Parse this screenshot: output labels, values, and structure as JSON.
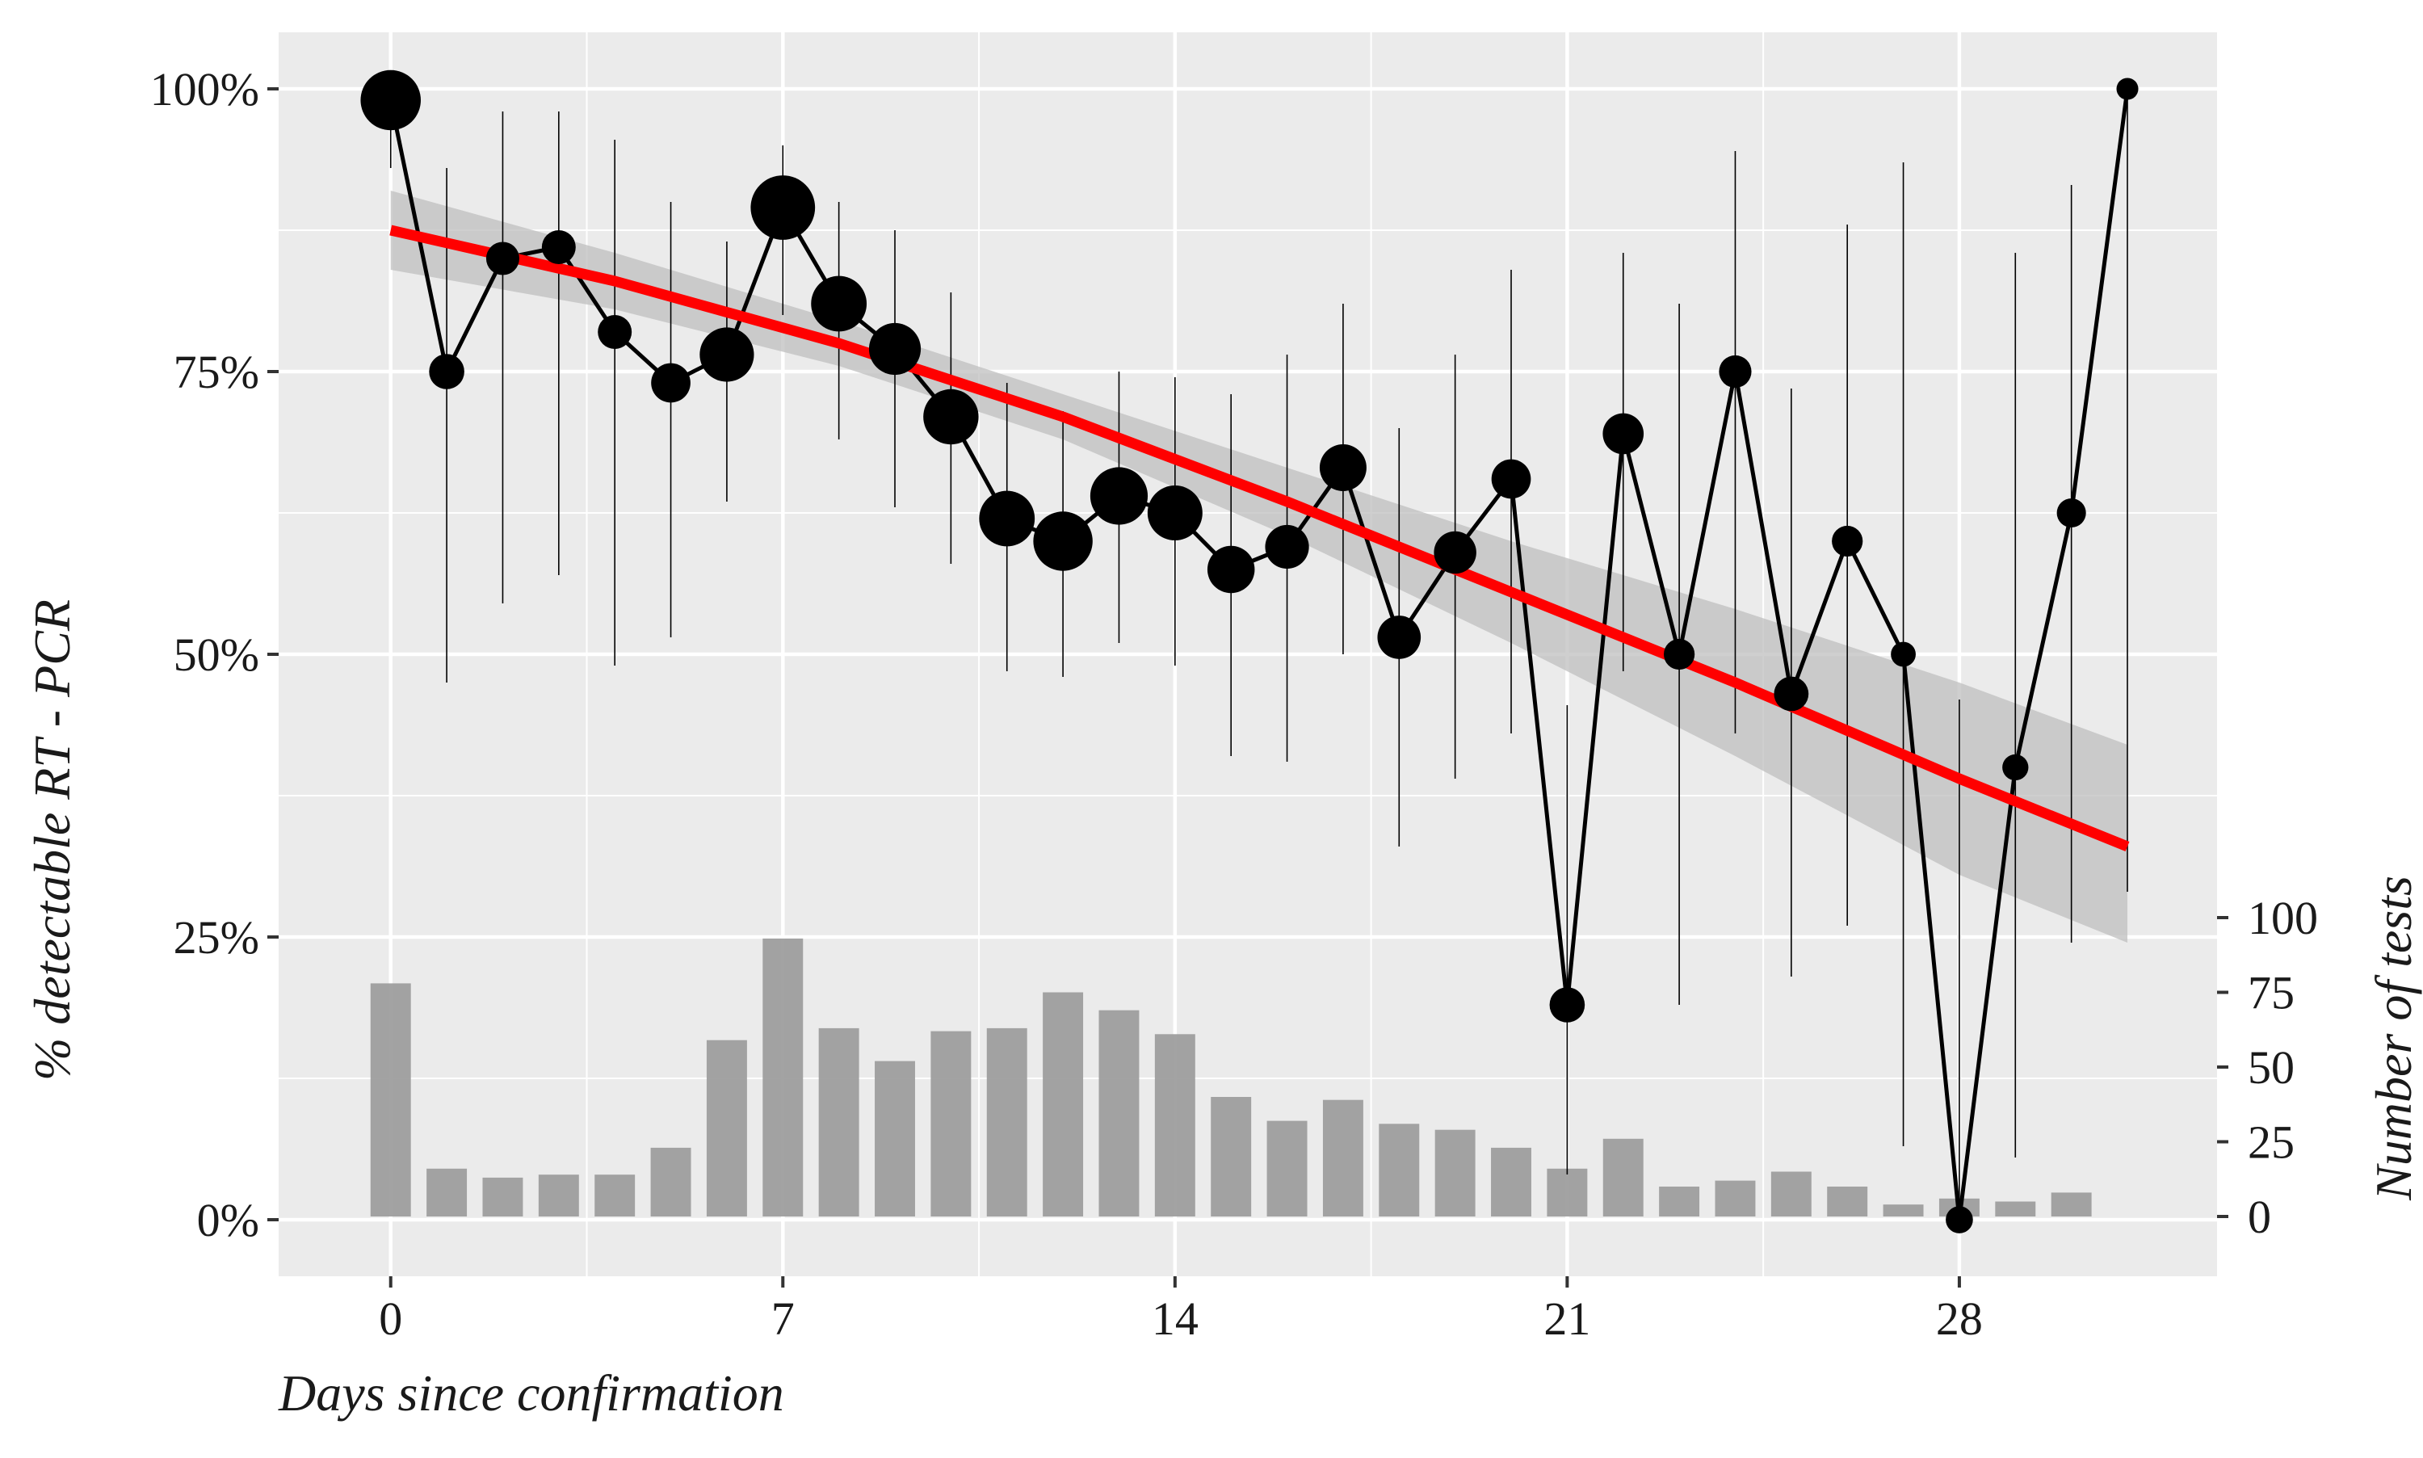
{
  "chart_data": {
    "type": "line",
    "title": "",
    "xlabel": "Days since confirmation",
    "ylabel": "% detectable RT - PCR",
    "y2label": "Number of tests",
    "xlim": [
      -2,
      32.6
    ],
    "ylim": [
      -0.05,
      1.05
    ],
    "x_ticks": [
      0,
      7,
      14,
      21,
      28
    ],
    "x_tick_labels": [
      "0",
      "7",
      "14",
      "21",
      "28"
    ],
    "y_ticks": [
      0,
      0.25,
      0.5,
      0.75,
      1.0
    ],
    "y_tick_labels": [
      "0%",
      "25%",
      "50%",
      "75%",
      "100%"
    ],
    "y2_ticks": [
      0,
      25,
      50,
      75,
      100
    ],
    "y2_tick_labels": [
      "0",
      "25",
      "50",
      "75",
      "100"
    ],
    "grid": true,
    "colors": {
      "panel": "#ebebeb",
      "grid": "#ffffff",
      "points": "#000000",
      "line": "#000000",
      "bars": "#9e9e9e",
      "trend": "#ff0000",
      "ribbon": "#bdbdbd"
    },
    "series": [
      {
        "name": "",
        "kind": "points-with-error-bars",
        "points": [
          {
            "x": 0,
            "y": 0.99,
            "lo": 0.93,
            "hi": 1.0,
            "n": 78
          },
          {
            "x": 1,
            "y": 0.75,
            "lo": 0.475,
            "hi": 0.93,
            "n": 16
          },
          {
            "x": 2,
            "y": 0.85,
            "lo": 0.545,
            "hi": 0.98,
            "n": 13
          },
          {
            "x": 3,
            "y": 0.86,
            "lo": 0.57,
            "hi": 0.98,
            "n": 14
          },
          {
            "x": 4,
            "y": 0.785,
            "lo": 0.49,
            "hi": 0.955,
            "n": 14
          },
          {
            "x": 5,
            "y": 0.74,
            "lo": 0.515,
            "hi": 0.9,
            "n": 23
          },
          {
            "x": 6,
            "y": 0.765,
            "lo": 0.635,
            "hi": 0.865,
            "n": 59
          },
          {
            "x": 7,
            "y": 0.895,
            "lo": 0.8,
            "hi": 0.95,
            "n": 93
          },
          {
            "x": 8,
            "y": 0.81,
            "lo": 0.69,
            "hi": 0.9,
            "n": 63
          },
          {
            "x": 9,
            "y": 0.77,
            "lo": 0.63,
            "hi": 0.875,
            "n": 52
          },
          {
            "x": 10,
            "y": 0.71,
            "lo": 0.58,
            "hi": 0.82,
            "n": 62
          },
          {
            "x": 11,
            "y": 0.62,
            "lo": 0.485,
            "hi": 0.74,
            "n": 63
          },
          {
            "x": 12,
            "y": 0.6,
            "lo": 0.48,
            "hi": 0.715,
            "n": 75
          },
          {
            "x": 13,
            "y": 0.64,
            "lo": 0.51,
            "hi": 0.75,
            "n": 69
          },
          {
            "x": 14,
            "y": 0.625,
            "lo": 0.49,
            "hi": 0.745,
            "n": 61
          },
          {
            "x": 15,
            "y": 0.575,
            "lo": 0.41,
            "hi": 0.73,
            "n": 40
          },
          {
            "x": 16,
            "y": 0.595,
            "lo": 0.405,
            "hi": 0.765,
            "n": 32
          },
          {
            "x": 17,
            "y": 0.665,
            "lo": 0.5,
            "hi": 0.81,
            "n": 39
          },
          {
            "x": 18,
            "y": 0.515,
            "lo": 0.33,
            "hi": 0.7,
            "n": 31
          },
          {
            "x": 19,
            "y": 0.59,
            "lo": 0.39,
            "hi": 0.765,
            "n": 29
          },
          {
            "x": 20,
            "y": 0.655,
            "lo": 0.43,
            "hi": 0.84,
            "n": 23
          },
          {
            "x": 21,
            "y": 0.19,
            "lo": 0.04,
            "hi": 0.455,
            "n": 16
          },
          {
            "x": 22,
            "y": 0.695,
            "lo": 0.485,
            "hi": 0.855,
            "n": 26
          },
          {
            "x": 23,
            "y": 0.5,
            "lo": 0.19,
            "hi": 0.81,
            "n": 10
          },
          {
            "x": 24,
            "y": 0.75,
            "lo": 0.43,
            "hi": 0.945,
            "n": 12
          },
          {
            "x": 25,
            "y": 0.465,
            "lo": 0.215,
            "hi": 0.735,
            "n": 15
          },
          {
            "x": 26,
            "y": 0.6,
            "lo": 0.26,
            "hi": 0.88,
            "n": 10
          },
          {
            "x": 27,
            "y": 0.5,
            "lo": 0.065,
            "hi": 0.935,
            "n": 4
          },
          {
            "x": 28,
            "y": 0.0,
            "lo": 0.0,
            "hi": 0.46,
            "n": 6
          },
          {
            "x": 29,
            "y": 0.4,
            "lo": 0.055,
            "hi": 0.855,
            "n": 5
          },
          {
            "x": 30,
            "y": 0.625,
            "lo": 0.245,
            "hi": 0.915,
            "n": 8
          },
          {
            "x": 31,
            "y": 1.0,
            "lo": 0.29,
            "hi": 1.0,
            "n": 2
          }
        ]
      },
      {
        "name": "",
        "kind": "bar",
        "axis": "secondary",
        "x": [
          0,
          1,
          2,
          3,
          4,
          5,
          6,
          7,
          8,
          9,
          10,
          11,
          12,
          13,
          14,
          15,
          16,
          17,
          18,
          19,
          20,
          21,
          22,
          23,
          24,
          25,
          26,
          27,
          28,
          29,
          30
        ],
        "values": [
          78,
          16,
          13,
          14,
          14,
          23,
          59,
          93,
          63,
          52,
          62,
          63,
          75,
          69,
          61,
          40,
          32,
          39,
          31,
          29,
          23,
          16,
          26,
          10,
          12,
          15,
          10,
          4,
          6,
          5,
          8
        ]
      },
      {
        "name": "",
        "kind": "smooth-fit",
        "x": [
          0,
          4,
          8,
          12,
          16,
          20,
          24,
          28,
          31
        ],
        "y": [
          0.875,
          0.83,
          0.775,
          0.71,
          0.635,
          0.555,
          0.475,
          0.39,
          0.33
        ],
        "lo": [
          0.84,
          0.805,
          0.755,
          0.69,
          0.605,
          0.51,
          0.41,
          0.305,
          0.245
        ],
        "hi": [
          0.91,
          0.855,
          0.795,
          0.73,
          0.665,
          0.6,
          0.54,
          0.475,
          0.42
        ]
      }
    ]
  }
}
